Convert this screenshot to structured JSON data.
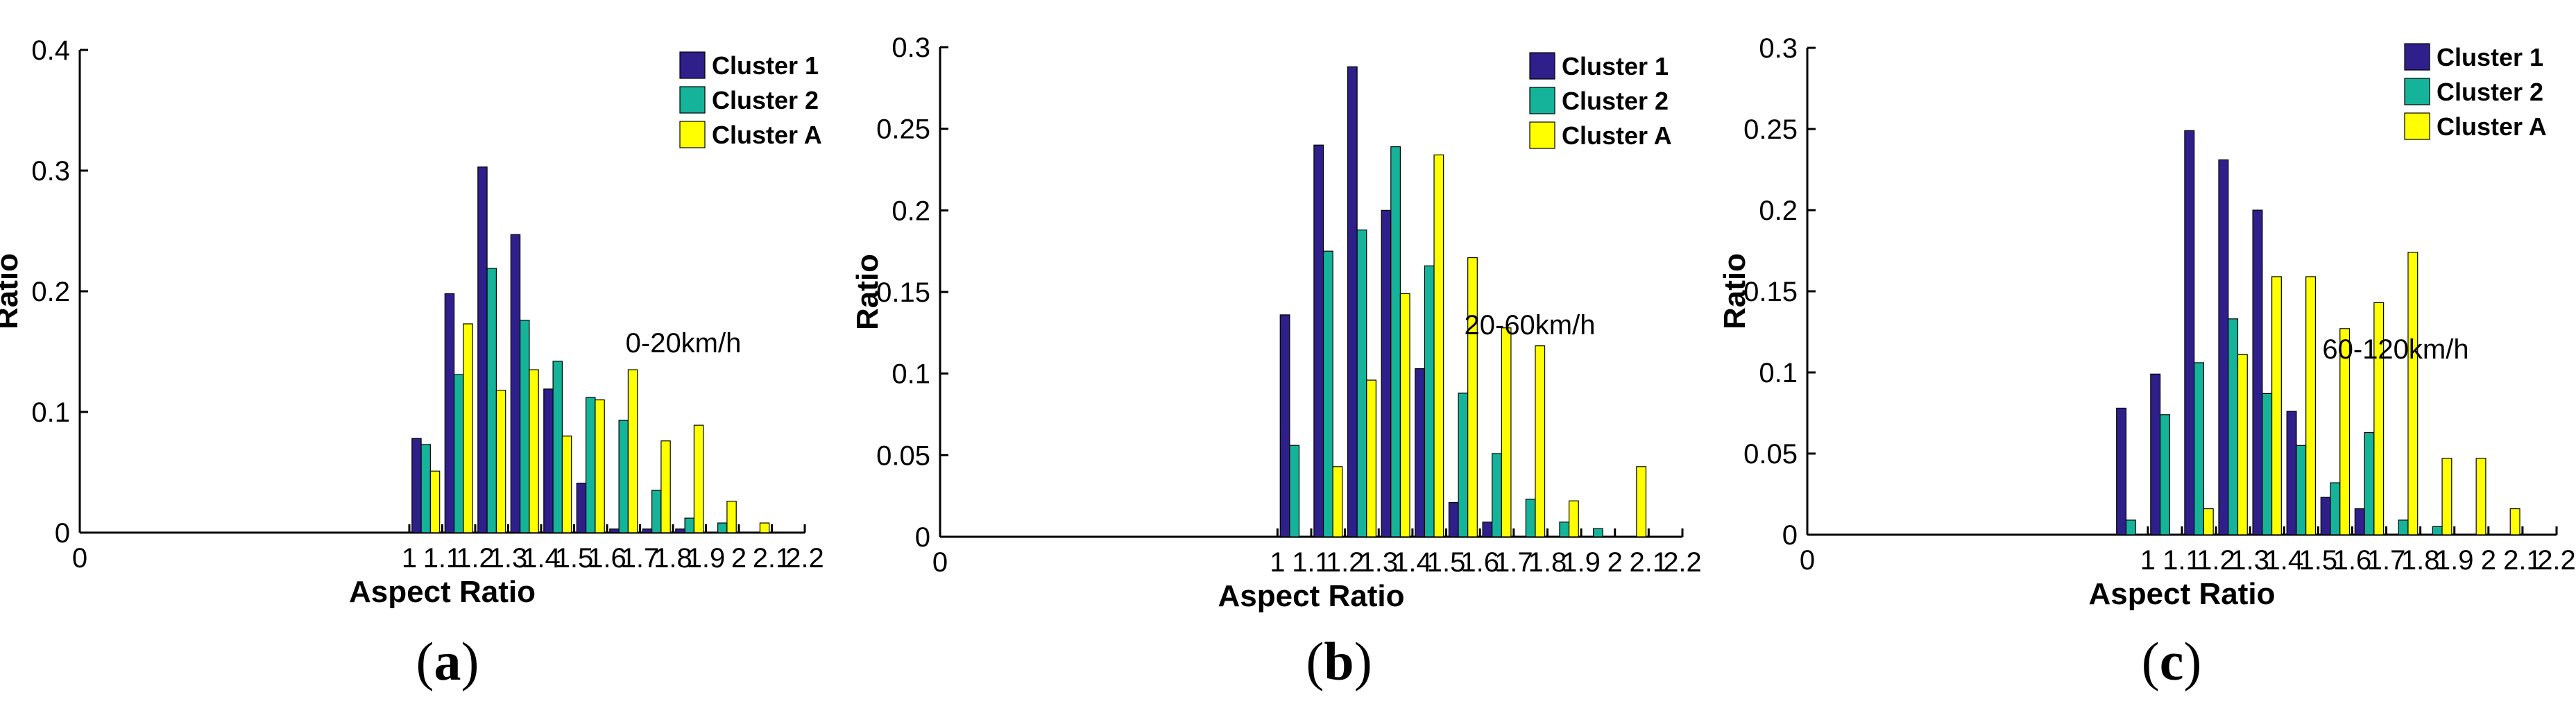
{
  "colors": {
    "Cluster 1": "#2e1f8a",
    "Cluster 2": "#14b39a",
    "Cluster A": "#ffff00"
  },
  "chart_data": [
    {
      "type": "bar",
      "panel": "a",
      "annotation": "0-20km/h",
      "xlabel": "Aspect Ratio",
      "ylabel": "Ratio",
      "xlim": [
        0,
        2.2
      ],
      "ylim": [
        0,
        0.4
      ],
      "xticks": [
        "0",
        "1",
        "1.1",
        "1.2",
        "1.3",
        "1.4",
        "1.5",
        "1.6",
        "1.7",
        "1.8",
        "1.9",
        "2",
        "2.1",
        "2.2"
      ],
      "yticks": [
        "0",
        "0.1",
        "0.2",
        "0.3",
        "0.4"
      ],
      "legend": [
        "Cluster 1",
        "Cluster 2",
        "Cluster A"
      ],
      "legend_position": "top-right",
      "x": [
        1.05,
        1.15,
        1.25,
        1.35,
        1.45,
        1.55,
        1.65,
        1.75,
        1.85,
        1.95,
        2.05
      ],
      "series": [
        {
          "name": "Cluster 1",
          "values": [
            0.078,
            0.198,
            0.303,
            0.247,
            0.119,
            0.041,
            0.003,
            0.003,
            0.003,
            0.0,
            0.0
          ]
        },
        {
          "name": "Cluster 2",
          "values": [
            0.073,
            0.131,
            0.219,
            0.176,
            0.142,
            0.112,
            0.093,
            0.035,
            0.012,
            0.008,
            0.0
          ]
        },
        {
          "name": "Cluster A",
          "values": [
            0.051,
            0.173,
            0.118,
            0.135,
            0.08,
            0.11,
            0.135,
            0.076,
            0.089,
            0.026,
            0.008
          ]
        }
      ]
    },
    {
      "type": "bar",
      "panel": "b",
      "annotation": "20-60km/h",
      "xlabel": "Aspect Ratio",
      "ylabel": "Ratio",
      "xlim": [
        0,
        2.2
      ],
      "ylim": [
        0,
        0.3
      ],
      "xticks": [
        "0",
        "1",
        "1.1",
        "1.2",
        "1.3",
        "1.4",
        "1.5",
        "1.6",
        "1.7",
        "1.8",
        "1.9",
        "2",
        "2.1",
        "2.2"
      ],
      "yticks": [
        "0",
        "0.05",
        "0.1",
        "0.15",
        "0.2",
        "0.25",
        "0.3"
      ],
      "legend": [
        "Cluster 1",
        "Cluster 2",
        "Cluster A"
      ],
      "legend_position": "top-right",
      "x": [
        1.05,
        1.15,
        1.25,
        1.35,
        1.45,
        1.55,
        1.65,
        1.75,
        1.85,
        1.95,
        2.05
      ],
      "series": [
        {
          "name": "Cluster 1",
          "values": [
            0.136,
            0.24,
            0.288,
            0.2,
            0.103,
            0.021,
            0.009,
            0.0,
            0.0,
            0.0,
            0.0
          ]
        },
        {
          "name": "Cluster 2",
          "values": [
            0.056,
            0.175,
            0.188,
            0.239,
            0.166,
            0.088,
            0.051,
            0.023,
            0.009,
            0.005,
            0.0
          ]
        },
        {
          "name": "Cluster A",
          "values": [
            0.0,
            0.043,
            0.096,
            0.149,
            0.234,
            0.171,
            0.128,
            0.117,
            0.022,
            0.0,
            0.043
          ]
        }
      ]
    },
    {
      "type": "bar",
      "panel": "c",
      "annotation": "60-120km/h",
      "xlabel": "Aspect Ratio",
      "ylabel": "Ratio",
      "xlim": [
        0,
        2.2
      ],
      "ylim": [
        0,
        0.3
      ],
      "xticks": [
        "0",
        "1",
        "1.1",
        "1.2",
        "1.3",
        "1.4",
        "1.5",
        "1.6",
        "1.7",
        "1.8",
        "1.9",
        "2",
        "2.1",
        "2.2"
      ],
      "yticks": [
        "0",
        "0.05",
        "0.1",
        "0.15",
        "0.2",
        "0.25",
        "0.3"
      ],
      "legend": [
        "Cluster 1",
        "Cluster 2",
        "Cluster A"
      ],
      "legend_position": "top-right",
      "x": [
        0.95,
        1.05,
        1.15,
        1.25,
        1.35,
        1.45,
        1.55,
        1.65,
        1.75,
        1.85,
        1.95,
        2.05
      ],
      "series": [
        {
          "name": "Cluster 1",
          "values": [
            0.078,
            0.099,
            0.249,
            0.231,
            0.2,
            0.076,
            0.023,
            0.016,
            0.0,
            0.0,
            0.0,
            0.0
          ]
        },
        {
          "name": "Cluster 2",
          "values": [
            0.009,
            0.074,
            0.106,
            0.133,
            0.087,
            0.055,
            0.032,
            0.063,
            0.009,
            0.005,
            0.0,
            0.0
          ]
        },
        {
          "name": "Cluster A",
          "values": [
            0.0,
            0.0,
            0.016,
            0.111,
            0.159,
            0.159,
            0.127,
            0.143,
            0.174,
            0.047,
            0.047,
            0.016
          ]
        }
      ]
    }
  ],
  "panel_labels": [
    {
      "open": "(",
      "letter": "a",
      "close": ")"
    },
    {
      "open": "(",
      "letter": "b",
      "close": ")"
    },
    {
      "open": "(",
      "letter": "c",
      "close": ")"
    }
  ]
}
